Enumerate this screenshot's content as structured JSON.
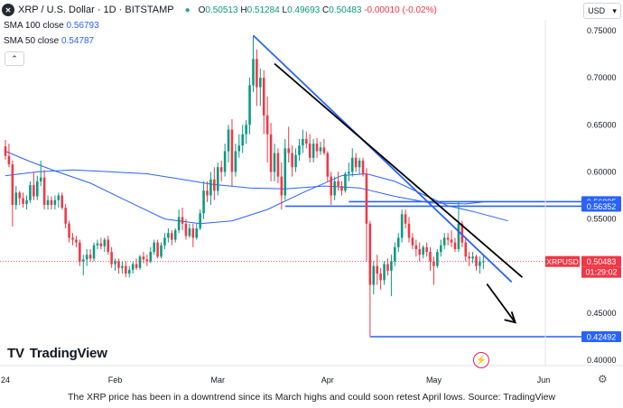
{
  "header": {
    "symbol_icon": "xrp-logo-icon",
    "title": "XRP / U.S. Dollar · 1D · BITSTAMP",
    "ohlc": {
      "open_label": "O",
      "open": "0.50513",
      "high_label": "H",
      "high": "0.51284",
      "low_label": "L",
      "low": "0.49693",
      "close_label": "C",
      "close": "0.50483",
      "change": "-0.00010 (-0.02%)"
    },
    "currency_button": "USD",
    "currency_chevron": "▾"
  },
  "indicators": {
    "sma100_label": "SMA 100 close",
    "sma100_value": "0.56793",
    "sma50_label": "SMA 50 close",
    "sma50_value": "0.54787",
    "collapse_icon": "chevron-up-icon",
    "collapse_glyph": "⌃"
  },
  "logo": {
    "text": "TradingView",
    "mark": "T🝊"
  },
  "caption": "The XRP price has been in a downtrend since its March highs and could soon retest April lows. Source: TradingView",
  "colors": {
    "up": "#089981",
    "down": "#f23645",
    "sma": "#2962ff",
    "line": "#2962ff",
    "trend": "#000000"
  },
  "chart_data": {
    "type": "candlestick",
    "symbol": "XRPUSD",
    "last_price": "0.50483",
    "countdown": "01:29:02",
    "ylim": [
      0.395,
      0.755
    ],
    "y_ticks": [
      "0.75000",
      "0.70000",
      "0.65000",
      "0.60000",
      "0.55000",
      "0.50000",
      "0.45000",
      "0.40000"
    ],
    "y_tick_values": [
      0.75,
      0.7,
      0.65,
      0.6,
      0.55,
      0.5,
      0.45,
      0.4
    ],
    "x_ticks": [
      {
        "label": "24",
        "date": "2024-01-01"
      },
      {
        "label": "Feb",
        "date": "2024-02-01"
      },
      {
        "label": "Mar",
        "date": "2024-03-01"
      },
      {
        "label": "Apr",
        "date": "2024-04-01"
      },
      {
        "label": "May",
        "date": "2024-05-01"
      },
      {
        "label": "Jun",
        "date": "2024-06-01"
      }
    ],
    "x_range": [
      "2024-01-01",
      "2024-06-13"
    ],
    "price_labels": [
      {
        "value": 0.56835,
        "text": "0.56835",
        "color": "#2962ff"
      },
      {
        "value": 0.56352,
        "text": "0.56352",
        "color": "#2962ff"
      },
      {
        "value": 0.50483,
        "text": "0.50483",
        "color": "#f23645"
      },
      {
        "value": 0.42492,
        "text": "0.42492",
        "color": "#2962ff"
      }
    ],
    "horizontal_levels": [
      {
        "value": 0.56835,
        "from": "2024-04-07",
        "to": "2024-06-13"
      },
      {
        "value": 0.56352,
        "from": "2024-03-20",
        "to": "2024-06-13"
      },
      {
        "value": 0.42492,
        "from": "2024-04-13",
        "to": "2024-06-13"
      }
    ],
    "trendlines": [
      {
        "name": "blue-downtrend",
        "from": [
          "2024-03-11",
          0.745
        ],
        "to": [
          "2024-05-23",
          0.483
        ],
        "color": "#2962ff"
      },
      {
        "name": "black-downtrend",
        "from": [
          "2024-03-17",
          0.715
        ],
        "to": [
          "2024-05-26",
          0.488
        ],
        "color": "#000000"
      }
    ],
    "arrow": {
      "from": [
        "2024-05-16",
        0.481
      ],
      "to": [
        "2024-05-24",
        0.44
      ]
    },
    "sma100": [
      [
        "2024-01-01",
        0.596
      ],
      [
        "2024-01-10",
        0.6
      ],
      [
        "2024-01-20",
        0.602
      ],
      [
        "2024-01-31",
        0.6
      ],
      [
        "2024-02-10",
        0.598
      ],
      [
        "2024-02-20",
        0.592
      ],
      [
        "2024-02-28",
        0.587
      ],
      [
        "2024-03-10",
        0.583
      ],
      [
        "2024-03-20",
        0.582
      ],
      [
        "2024-03-31",
        0.585
      ],
      [
        "2024-04-10",
        0.583
      ],
      [
        "2024-04-20",
        0.574
      ],
      [
        "2024-04-30",
        0.567
      ],
      [
        "2024-05-10",
        0.566
      ],
      [
        "2024-05-15",
        0.568
      ]
    ],
    "sma50": [
      [
        "2024-01-01",
        0.622
      ],
      [
        "2024-01-08",
        0.611
      ],
      [
        "2024-01-15",
        0.601
      ],
      [
        "2024-01-25",
        0.588
      ],
      [
        "2024-02-05",
        0.568
      ],
      [
        "2024-02-15",
        0.55
      ],
      [
        "2024-02-25",
        0.545
      ],
      [
        "2024-03-05",
        0.548
      ],
      [
        "2024-03-15",
        0.56
      ],
      [
        "2024-03-25",
        0.578
      ],
      [
        "2024-04-05",
        0.596
      ],
      [
        "2024-04-12",
        0.598
      ],
      [
        "2024-04-20",
        0.59
      ],
      [
        "2024-04-28",
        0.576
      ],
      [
        "2024-05-05",
        0.564
      ],
      [
        "2024-05-12",
        0.558
      ],
      [
        "2024-05-22",
        0.548
      ]
    ],
    "candles": [
      [
        "2024-01-01",
        0.627,
        0.634,
        0.613,
        0.617
      ],
      [
        "2024-01-02",
        0.617,
        0.63,
        0.605,
        0.608
      ],
      [
        "2024-01-03",
        0.608,
        0.612,
        0.542,
        0.565
      ],
      [
        "2024-01-04",
        0.565,
        0.585,
        0.56,
        0.578
      ],
      [
        "2024-01-05",
        0.578,
        0.58,
        0.565,
        0.572
      ],
      [
        "2024-01-06",
        0.572,
        0.578,
        0.562,
        0.566
      ],
      [
        "2024-01-07",
        0.566,
        0.575,
        0.56,
        0.57
      ],
      [
        "2024-01-08",
        0.57,
        0.59,
        0.567,
        0.586
      ],
      [
        "2024-01-09",
        0.586,
        0.6,
        0.57,
        0.574
      ],
      [
        "2024-01-10",
        0.574,
        0.596,
        0.57,
        0.59
      ],
      [
        "2024-01-11",
        0.59,
        0.612,
        0.585,
        0.594
      ],
      [
        "2024-01-12",
        0.594,
        0.602,
        0.56,
        0.565
      ],
      [
        "2024-01-13",
        0.565,
        0.575,
        0.56,
        0.57
      ],
      [
        "2024-01-14",
        0.57,
        0.574,
        0.56,
        0.565
      ],
      [
        "2024-01-15",
        0.565,
        0.575,
        0.56,
        0.57
      ],
      [
        "2024-01-16",
        0.57,
        0.578,
        0.562,
        0.575
      ],
      [
        "2024-01-17",
        0.575,
        0.578,
        0.56,
        0.562
      ],
      [
        "2024-01-18",
        0.562,
        0.566,
        0.54,
        0.545
      ],
      [
        "2024-01-19",
        0.545,
        0.548,
        0.525,
        0.53
      ],
      [
        "2024-01-20",
        0.53,
        0.535,
        0.522,
        0.528
      ],
      [
        "2024-01-21",
        0.528,
        0.532,
        0.52,
        0.525
      ],
      [
        "2024-01-22",
        0.525,
        0.528,
        0.5,
        0.505
      ],
      [
        "2024-01-23",
        0.505,
        0.512,
        0.49,
        0.507
      ],
      [
        "2024-01-24",
        0.507,
        0.518,
        0.5,
        0.512
      ],
      [
        "2024-01-25",
        0.512,
        0.518,
        0.505,
        0.508
      ],
      [
        "2024-01-26",
        0.508,
        0.525,
        0.505,
        0.522
      ],
      [
        "2024-01-27",
        0.522,
        0.528,
        0.518,
        0.524
      ],
      [
        "2024-01-28",
        0.524,
        0.53,
        0.518,
        0.521
      ],
      [
        "2024-01-29",
        0.521,
        0.53,
        0.515,
        0.528
      ],
      [
        "2024-01-30",
        0.528,
        0.532,
        0.512,
        0.515
      ],
      [
        "2024-01-31",
        0.515,
        0.52,
        0.498,
        0.502
      ],
      [
        "2024-02-01",
        0.502,
        0.508,
        0.495,
        0.505
      ],
      [
        "2024-02-02",
        0.505,
        0.508,
        0.492,
        0.498
      ],
      [
        "2024-02-03",
        0.498,
        0.505,
        0.492,
        0.5
      ],
      [
        "2024-02-04",
        0.5,
        0.505,
        0.488,
        0.492
      ],
      [
        "2024-02-05",
        0.492,
        0.5,
        0.488,
        0.496
      ],
      [
        "2024-02-06",
        0.496,
        0.505,
        0.492,
        0.502
      ],
      [
        "2024-02-07",
        0.502,
        0.508,
        0.496,
        0.498
      ],
      [
        "2024-02-08",
        0.498,
        0.512,
        0.496,
        0.51
      ],
      [
        "2024-02-09",
        0.51,
        0.515,
        0.503,
        0.507
      ],
      [
        "2024-02-10",
        0.507,
        0.512,
        0.5,
        0.505
      ],
      [
        "2024-02-11",
        0.505,
        0.52,
        0.503,
        0.515
      ],
      [
        "2024-02-12",
        0.515,
        0.528,
        0.512,
        0.525
      ],
      [
        "2024-02-13",
        0.525,
        0.528,
        0.508,
        0.51
      ],
      [
        "2024-02-14",
        0.51,
        0.525,
        0.508,
        0.522
      ],
      [
        "2024-02-15",
        0.522,
        0.535,
        0.518,
        0.53
      ],
      [
        "2024-02-16",
        0.53,
        0.54,
        0.525,
        0.535
      ],
      [
        "2024-02-17",
        0.535,
        0.538,
        0.522,
        0.528
      ],
      [
        "2024-02-18",
        0.528,
        0.54,
        0.525,
        0.538
      ],
      [
        "2024-02-19",
        0.538,
        0.56,
        0.535,
        0.552
      ],
      [
        "2024-02-20",
        0.552,
        0.562,
        0.538,
        0.545
      ],
      [
        "2024-02-21",
        0.545,
        0.55,
        0.528,
        0.532
      ],
      [
        "2024-02-22",
        0.532,
        0.545,
        0.53,
        0.54
      ],
      [
        "2024-02-23",
        0.54,
        0.545,
        0.52,
        0.53
      ],
      [
        "2024-02-24",
        0.53,
        0.545,
        0.528,
        0.54
      ],
      [
        "2024-02-25",
        0.54,
        0.56,
        0.538,
        0.556
      ],
      [
        "2024-02-26",
        0.556,
        0.59,
        0.55,
        0.58
      ],
      [
        "2024-02-27",
        0.58,
        0.59,
        0.568,
        0.575
      ],
      [
        "2024-02-28",
        0.575,
        0.6,
        0.565,
        0.592
      ],
      [
        "2024-02-29",
        0.592,
        0.605,
        0.57,
        0.58
      ],
      [
        "2024-03-01",
        0.58,
        0.61,
        0.575,
        0.605
      ],
      [
        "2024-03-02",
        0.605,
        0.612,
        0.59,
        0.6
      ],
      [
        "2024-03-03",
        0.6,
        0.63,
        0.595,
        0.622
      ],
      [
        "2024-03-04",
        0.622,
        0.65,
        0.61,
        0.645
      ],
      [
        "2024-03-05",
        0.645,
        0.656,
        0.585,
        0.6
      ],
      [
        "2024-03-06",
        0.6,
        0.63,
        0.595,
        0.622
      ],
      [
        "2024-03-07",
        0.622,
        0.64,
        0.615,
        0.628
      ],
      [
        "2024-03-08",
        0.628,
        0.65,
        0.62,
        0.64
      ],
      [
        "2024-03-09",
        0.64,
        0.655,
        0.63,
        0.65
      ],
      [
        "2024-03-10",
        0.65,
        0.7,
        0.64,
        0.692
      ],
      [
        "2024-03-11",
        0.692,
        0.745,
        0.685,
        0.72
      ],
      [
        "2024-03-12",
        0.72,
        0.73,
        0.67,
        0.69
      ],
      [
        "2024-03-13",
        0.69,
        0.71,
        0.67,
        0.7
      ],
      [
        "2024-03-14",
        0.7,
        0.708,
        0.64,
        0.66
      ],
      [
        "2024-03-15",
        0.66,
        0.68,
        0.61,
        0.64
      ],
      [
        "2024-03-16",
        0.64,
        0.652,
        0.59,
        0.6
      ],
      [
        "2024-03-17",
        0.6,
        0.63,
        0.59,
        0.62
      ],
      [
        "2024-03-18",
        0.62,
        0.625,
        0.588,
        0.595
      ],
      [
        "2024-03-19",
        0.595,
        0.61,
        0.56,
        0.575
      ],
      [
        "2024-03-20",
        0.575,
        0.635,
        0.57,
        0.625
      ],
      [
        "2024-03-21",
        0.625,
        0.648,
        0.61,
        0.62
      ],
      [
        "2024-03-22",
        0.62,
        0.628,
        0.595,
        0.605
      ],
      [
        "2024-03-23",
        0.605,
        0.625,
        0.6,
        0.618
      ],
      [
        "2024-03-24",
        0.618,
        0.635,
        0.612,
        0.628
      ],
      [
        "2024-03-25",
        0.628,
        0.645,
        0.62,
        0.635
      ],
      [
        "2024-03-26",
        0.635,
        0.643,
        0.625,
        0.63
      ],
      [
        "2024-03-27",
        0.63,
        0.64,
        0.61,
        0.615
      ],
      [
        "2024-03-28",
        0.615,
        0.635,
        0.61,
        0.63
      ],
      [
        "2024-03-29",
        0.63,
        0.636,
        0.615,
        0.622
      ],
      [
        "2024-03-30",
        0.622,
        0.632,
        0.618,
        0.626
      ],
      [
        "2024-03-31",
        0.626,
        0.635,
        0.618,
        0.62
      ],
      [
        "2024-04-01",
        0.62,
        0.622,
        0.59,
        0.595
      ],
      [
        "2024-04-02",
        0.595,
        0.6,
        0.565,
        0.575
      ],
      [
        "2024-04-03",
        0.575,
        0.595,
        0.57,
        0.59
      ],
      [
        "2024-04-04",
        0.59,
        0.6,
        0.58,
        0.585
      ],
      [
        "2024-04-05",
        0.585,
        0.59,
        0.575,
        0.58
      ],
      [
        "2024-04-06",
        0.58,
        0.6,
        0.578,
        0.598
      ],
      [
        "2024-04-07",
        0.598,
        0.61,
        0.59,
        0.6
      ],
      [
        "2024-04-08",
        0.6,
        0.625,
        0.595,
        0.615
      ],
      [
        "2024-04-09",
        0.615,
        0.62,
        0.6,
        0.605
      ],
      [
        "2024-04-10",
        0.605,
        0.615,
        0.598,
        0.612
      ],
      [
        "2024-04-11",
        0.612,
        0.615,
        0.595,
        0.598
      ],
      [
        "2024-04-12",
        0.598,
        0.604,
        0.505,
        0.545
      ],
      [
        "2024-04-13",
        0.545,
        0.548,
        0.425,
        0.48
      ],
      [
        "2024-04-14",
        0.48,
        0.505,
        0.47,
        0.5
      ],
      [
        "2024-04-15",
        0.5,
        0.512,
        0.48,
        0.492
      ],
      [
        "2024-04-16",
        0.492,
        0.498,
        0.475,
        0.485
      ],
      [
        "2024-04-17",
        0.485,
        0.505,
        0.48,
        0.502
      ],
      [
        "2024-04-18",
        0.502,
        0.508,
        0.49,
        0.495
      ],
      [
        "2024-04-19",
        0.495,
        0.512,
        0.468,
        0.505
      ],
      [
        "2024-04-20",
        0.505,
        0.525,
        0.5,
        0.52
      ],
      [
        "2024-04-21",
        0.52,
        0.535,
        0.515,
        0.53
      ],
      [
        "2024-04-22",
        0.53,
        0.56,
        0.525,
        0.555
      ],
      [
        "2024-04-23",
        0.555,
        0.56,
        0.54,
        0.545
      ],
      [
        "2024-04-24",
        0.545,
        0.552,
        0.525,
        0.53
      ],
      [
        "2024-04-25",
        0.53,
        0.535,
        0.518,
        0.522
      ],
      [
        "2024-04-26",
        0.522,
        0.528,
        0.51,
        0.518
      ],
      [
        "2024-04-27",
        0.518,
        0.525,
        0.505,
        0.512
      ],
      [
        "2024-04-28",
        0.512,
        0.522,
        0.508,
        0.52
      ],
      [
        "2024-04-29",
        0.52,
        0.525,
        0.51,
        0.515
      ],
      [
        "2024-04-30",
        0.515,
        0.52,
        0.495,
        0.505
      ],
      [
        "2024-05-01",
        0.505,
        0.51,
        0.48,
        0.5
      ],
      [
        "2024-05-02",
        0.5,
        0.518,
        0.498,
        0.515
      ],
      [
        "2024-05-03",
        0.515,
        0.528,
        0.51,
        0.522
      ],
      [
        "2024-05-04",
        0.522,
        0.535,
        0.518,
        0.53
      ],
      [
        "2024-05-05",
        0.53,
        0.535,
        0.522,
        0.528
      ],
      [
        "2024-05-06",
        0.528,
        0.538,
        0.52,
        0.525
      ],
      [
        "2024-05-07",
        0.525,
        0.53,
        0.515,
        0.518
      ],
      [
        "2024-05-08",
        0.518,
        0.568,
        0.515,
        0.545
      ],
      [
        "2024-05-09",
        0.545,
        0.548,
        0.52,
        0.525
      ],
      [
        "2024-05-10",
        0.525,
        0.53,
        0.505,
        0.51
      ],
      [
        "2024-05-11",
        0.51,
        0.515,
        0.5,
        0.508
      ],
      [
        "2024-05-12",
        0.508,
        0.515,
        0.503,
        0.51
      ],
      [
        "2024-05-13",
        0.51,
        0.512,
        0.495,
        0.5
      ],
      [
        "2024-05-14",
        0.5,
        0.51,
        0.492,
        0.505
      ],
      [
        "2024-05-15",
        0.505,
        0.512,
        0.497,
        0.505
      ]
    ]
  }
}
